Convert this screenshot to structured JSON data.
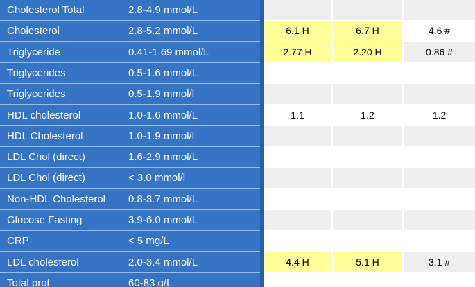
{
  "table": {
    "rows": [
      {
        "name": "Cholesterol Total",
        "range": "2.8-4.9 mmol/L"
      },
      {
        "name": "Cholesterol",
        "range": "2.8-5.2 mmol/L",
        "results": [
          "6.1 H",
          "6.7 H",
          "4.6 #"
        ],
        "highlight": [
          true,
          true,
          false
        ]
      },
      {
        "name": "Triglyceride",
        "range": "0.41-1.69 mmol/L",
        "results": [
          "2.77 H",
          "2.20 H",
          "0.86 #"
        ],
        "highlight": [
          true,
          true,
          false
        ]
      },
      {
        "name": "Triglycerides",
        "range": "0.5-1.6 mmol/L"
      },
      {
        "name": "Triglycerides",
        "range": "0.5-1.9 mmol/l"
      },
      {
        "name": "HDL cholesterol",
        "range": "1.0-1.6 mmol/L",
        "results": [
          "1.1",
          "1.2",
          "1.2"
        ],
        "highlight": [
          false,
          false,
          false
        ]
      },
      {
        "name": "HDL Cholesterol",
        "range": "1.0-1.9 mmol/l"
      },
      {
        "name": "LDL Chol (direct)",
        "range": "1.6-2.9 mmol/L"
      },
      {
        "name": "LDL Chol (direct)",
        "range": "< 3.0 mmol/l"
      },
      {
        "name": "Non-HDL Cholesterol",
        "range": "0.8-3.7 mmol/L"
      },
      {
        "name": "Glucose Fasting",
        "range": "3.9-6.0 mmol/L"
      },
      {
        "name": "CRP",
        "range": "< 5 mg/L"
      },
      {
        "name": "LDL cholesterol",
        "range": "2.0-3.4 mmol/L",
        "results": [
          "4.4 H",
          "5.1 H",
          "3.1 #"
        ],
        "highlight": [
          true,
          true,
          false
        ]
      },
      {
        "name": "Total prot",
        "range": "60-83 g/L"
      }
    ]
  }
}
